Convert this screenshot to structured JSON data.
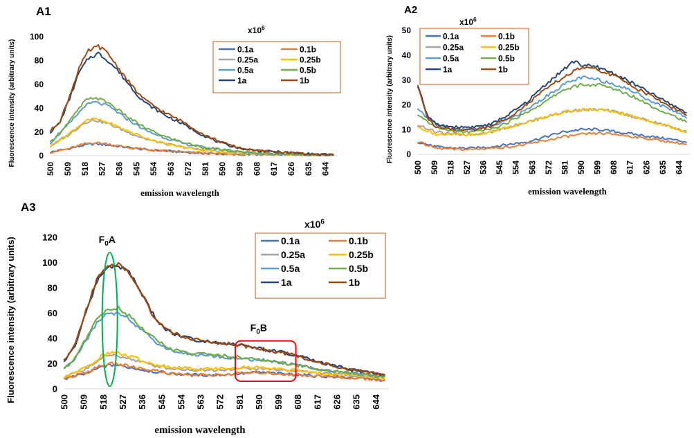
{
  "colors": {
    "0.1a": "#4472c4",
    "0.1b": "#ed7d31",
    "0.25a": "#a5a5a5",
    "0.25b": "#ffc000",
    "0.5a": "#5b9bd5",
    "0.5b": "#70ad47",
    "1a": "#264478",
    "1b": "#9e480e",
    "legend_border": "#c55a11",
    "ellipse": "#00b050",
    "rect": "#ff0000"
  },
  "chart_data": [
    {
      "id": "A1",
      "type": "line",
      "panel_label": "A1",
      "xlabel": "emission wavelength",
      "ylabel": "Fluorescence intensity (arbitrary units)",
      "ylim": [
        0,
        100
      ],
      "yticks": [
        "0",
        "20",
        "40",
        "60",
        "80",
        "100"
      ],
      "xlim": [
        500,
        650
      ],
      "xticks": [
        "500",
        "509",
        "518",
        "527",
        "536",
        "545",
        "554",
        "563",
        "572",
        "581",
        "590",
        "599",
        "608",
        "617",
        "626",
        "635",
        "644"
      ],
      "legend_title": "x10",
      "legend_title_exp": "6",
      "legend": [
        "0.1a",
        "0.1b",
        "0.25a",
        "0.25b",
        "0.5a",
        "0.5b",
        "1a",
        "1b"
      ],
      "series": [
        {
          "name": "0.1a",
          "x": [
            500,
            510,
            518,
            523,
            530,
            540,
            550,
            560,
            570,
            580,
            590,
            600,
            610,
            620,
            630,
            640,
            648
          ],
          "y": [
            3,
            6,
            9,
            10,
            9,
            7,
            5,
            4,
            3,
            2,
            1.5,
            1,
            1,
            1,
            1,
            0.5,
            0.5
          ]
        },
        {
          "name": "0.1b",
          "x": [
            500,
            510,
            518,
            523,
            530,
            540,
            550,
            560,
            570,
            580,
            590,
            600,
            610,
            620,
            630,
            640,
            648
          ],
          "y": [
            3,
            6,
            10,
            11,
            10,
            7,
            5,
            4,
            3,
            2,
            1.5,
            1,
            1,
            1,
            1,
            0.5,
            0.5
          ]
        },
        {
          "name": "0.25a",
          "x": [
            500,
            510,
            518,
            523,
            530,
            540,
            550,
            560,
            570,
            580,
            590,
            600,
            610,
            620,
            630,
            640,
            648
          ],
          "y": [
            8,
            18,
            28,
            30,
            27,
            20,
            14,
            10,
            7,
            5,
            3,
            2,
            1.5,
            1,
            1,
            0.5,
            0.5
          ]
        },
        {
          "name": "0.25b",
          "x": [
            500,
            510,
            518,
            523,
            530,
            540,
            550,
            560,
            570,
            580,
            590,
            600,
            610,
            620,
            630,
            640,
            648
          ],
          "y": [
            8,
            19,
            29,
            31,
            28,
            21,
            15,
            10,
            7,
            5,
            3,
            2,
            1.5,
            1,
            1,
            0.5,
            0.5
          ]
        },
        {
          "name": "0.5a",
          "x": [
            500,
            510,
            518,
            523,
            530,
            540,
            550,
            560,
            570,
            580,
            590,
            600,
            610,
            620,
            630,
            640,
            648
          ],
          "y": [
            11,
            27,
            42,
            45,
            42,
            31,
            21,
            15,
            10,
            7,
            5,
            3,
            2,
            1.5,
            1,
            1,
            0.5
          ]
        },
        {
          "name": "0.5b",
          "x": [
            500,
            510,
            518,
            523,
            530,
            540,
            550,
            560,
            570,
            580,
            590,
            600,
            610,
            620,
            630,
            640,
            648
          ],
          "y": [
            11,
            29,
            46,
            49,
            45,
            33,
            23,
            16,
            11,
            7,
            5,
            3,
            2,
            1.5,
            1,
            1,
            0.5
          ]
        },
        {
          "name": "1a",
          "x": [
            500,
            505,
            510,
            515,
            520,
            525,
            530,
            535,
            540,
            545,
            550,
            560,
            570,
            580,
            590,
            600,
            610,
            620,
            630,
            640,
            648
          ],
          "y": [
            20,
            28,
            48,
            70,
            82,
            86,
            80,
            72,
            62,
            52,
            44,
            34,
            26,
            17,
            10,
            6,
            4,
            3,
            2,
            1,
            1
          ]
        },
        {
          "name": "1b",
          "x": [
            500,
            505,
            510,
            515,
            520,
            525,
            530,
            535,
            540,
            545,
            550,
            560,
            570,
            580,
            590,
            600,
            610,
            620,
            630,
            640,
            648
          ],
          "y": [
            21,
            29,
            50,
            74,
            88,
            92,
            86,
            75,
            64,
            54,
            46,
            36,
            28,
            18,
            11,
            6,
            4,
            3,
            2,
            1,
            1
          ]
        }
      ]
    },
    {
      "id": "A2",
      "type": "line",
      "panel_label": "A2",
      "xlabel": "emission wavelength",
      "ylabel": "Fluorescence intensity (arbitrary units)",
      "ylim": [
        0,
        50
      ],
      "yticks": [
        "0",
        "10",
        "20",
        "30",
        "40",
        "50"
      ],
      "xlim": [
        500,
        650
      ],
      "xticks": [
        "500",
        "509",
        "518",
        "527",
        "536",
        "545",
        "554",
        "563",
        "572",
        "581",
        "590",
        "599",
        "608",
        "617",
        "626",
        "635",
        "644"
      ],
      "legend_title": "x10",
      "legend_title_exp": "6",
      "legend": [
        "0.1a",
        "0.1b",
        "0.25a",
        "0.25b",
        "0.5a",
        "0.5b",
        "1a",
        "1b"
      ],
      "series": [
        {
          "name": "0.1a",
          "x": [
            500,
            510,
            520,
            530,
            540,
            550,
            560,
            570,
            580,
            590,
            600,
            610,
            620,
            630,
            640,
            648
          ],
          "y": [
            5,
            3,
            2.5,
            2.5,
            3,
            4,
            5,
            7,
            9,
            10,
            10,
            9,
            8,
            7,
            6,
            5
          ]
        },
        {
          "name": "0.1b",
          "x": [
            500,
            510,
            520,
            530,
            540,
            550,
            560,
            570,
            580,
            590,
            600,
            610,
            620,
            630,
            640,
            648
          ],
          "y": [
            5,
            2.5,
            2,
            2,
            2.5,
            3,
            4,
            5.5,
            7,
            8,
            8.5,
            8,
            7,
            6,
            5,
            4
          ]
        },
        {
          "name": "0.25a",
          "x": [
            500,
            510,
            520,
            530,
            540,
            550,
            560,
            570,
            580,
            590,
            600,
            610,
            620,
            630,
            640,
            648
          ],
          "y": [
            12,
            9,
            8,
            8,
            9,
            11,
            13,
            15,
            17,
            18,
            18,
            17,
            15,
            13,
            11,
            9
          ]
        },
        {
          "name": "0.25b",
          "x": [
            500,
            510,
            520,
            530,
            540,
            550,
            560,
            570,
            580,
            590,
            600,
            610,
            620,
            630,
            640,
            648
          ],
          "y": [
            11,
            8,
            8,
            8,
            9,
            11,
            13,
            15,
            17,
            18,
            18,
            17,
            15,
            13,
            11,
            9
          ]
        },
        {
          "name": "0.5a",
          "x": [
            500,
            510,
            520,
            530,
            540,
            550,
            560,
            570,
            580,
            590,
            600,
            610,
            620,
            630,
            640,
            648
          ],
          "y": [
            18,
            12,
            10,
            10,
            11,
            14,
            18,
            23,
            28,
            31,
            30,
            28,
            25,
            21,
            18,
            15
          ]
        },
        {
          "name": "0.5b",
          "x": [
            500,
            510,
            520,
            530,
            540,
            550,
            560,
            570,
            580,
            590,
            600,
            610,
            620,
            630,
            640,
            648
          ],
          "y": [
            16,
            11,
            9,
            9,
            10,
            13,
            17,
            21,
            26,
            28,
            28,
            26,
            23,
            19,
            16,
            13
          ]
        },
        {
          "name": "1a",
          "x": [
            500,
            505,
            510,
            520,
            530,
            540,
            550,
            560,
            570,
            580,
            587,
            590,
            600,
            610,
            620,
            630,
            640,
            648
          ],
          "y": [
            28,
            16,
            12,
            11,
            11,
            12,
            16,
            21,
            28,
            34,
            38,
            36,
            35,
            32,
            28,
            24,
            20,
            17
          ]
        },
        {
          "name": "1b",
          "x": [
            500,
            505,
            510,
            520,
            530,
            540,
            550,
            560,
            570,
            580,
            590,
            600,
            610,
            620,
            630,
            640,
            648
          ],
          "y": [
            27,
            15,
            11,
            10,
            10,
            11,
            15,
            20,
            26,
            31,
            35,
            34,
            31,
            27,
            23,
            19,
            16
          ]
        }
      ]
    },
    {
      "id": "A3",
      "type": "line",
      "panel_label": "A3",
      "xlabel": "emission wavelength",
      "ylabel": "Fluorescence intensity (arbitrary units)",
      "ylim": [
        0,
        120
      ],
      "yticks": [
        "0",
        "20",
        "40",
        "60",
        "80",
        "100",
        "120"
      ],
      "xlim": [
        500,
        650
      ],
      "xticks": [
        "500",
        "509",
        "518",
        "527",
        "536",
        "545",
        "554",
        "563",
        "572",
        "581",
        "590",
        "599",
        "608",
        "617",
        "626",
        "635",
        "644"
      ],
      "legend_title": "x10",
      "legend_title_exp": "6",
      "legend": [
        "0.1a",
        "0.1b",
        "0.25a",
        "0.25b",
        "0.5a",
        "0.5b",
        "1a",
        "1b"
      ],
      "annotations": [
        {
          "text": "F",
          "sub": "0",
          "rest": "A"
        },
        {
          "text": "F",
          "sub": "0",
          "rest": "B"
        }
      ],
      "series": [
        {
          "name": "0.1a",
          "x": [
            500,
            510,
            518,
            523,
            530,
            540,
            550,
            560,
            570,
            580,
            590,
            600,
            610,
            620,
            630,
            640,
            648
          ],
          "y": [
            8,
            12,
            18,
            19,
            17,
            14,
            12,
            11,
            11,
            12,
            13,
            12,
            11,
            10,
            9,
            8,
            7
          ]
        },
        {
          "name": "0.1b",
          "x": [
            500,
            510,
            518,
            523,
            530,
            540,
            550,
            560,
            570,
            580,
            590,
            600,
            610,
            620,
            630,
            640,
            648
          ],
          "y": [
            8,
            13,
            19,
            20,
            18,
            15,
            12,
            11,
            11,
            12,
            13,
            12,
            11,
            10,
            9,
            8,
            7
          ]
        },
        {
          "name": "0.25a",
          "x": [
            500,
            510,
            518,
            523,
            530,
            540,
            550,
            560,
            570,
            580,
            590,
            600,
            610,
            620,
            630,
            640,
            648
          ],
          "y": [
            9,
            16,
            25,
            27,
            24,
            19,
            16,
            15,
            15,
            16,
            16,
            15,
            14,
            12,
            11,
            10,
            9
          ]
        },
        {
          "name": "0.25b",
          "x": [
            500,
            510,
            518,
            523,
            530,
            540,
            550,
            560,
            570,
            580,
            590,
            600,
            610,
            620,
            630,
            640,
            648
          ],
          "y": [
            9,
            17,
            27,
            29,
            26,
            20,
            17,
            16,
            16,
            17,
            17,
            16,
            14,
            12,
            11,
            10,
            9
          ]
        },
        {
          "name": "0.5a",
          "x": [
            500,
            505,
            510,
            515,
            520,
            525,
            530,
            535,
            540,
            545,
            550,
            560,
            570,
            580,
            590,
            600,
            610,
            620,
            630,
            640,
            648
          ],
          "y": [
            16,
            24,
            38,
            52,
            60,
            60,
            56,
            47,
            40,
            34,
            30,
            27,
            26,
            24,
            23,
            21,
            18,
            15,
            13,
            11,
            10
          ]
        },
        {
          "name": "0.5b",
          "x": [
            500,
            505,
            510,
            515,
            520,
            525,
            530,
            535,
            540,
            545,
            550,
            560,
            570,
            580,
            590,
            600,
            610,
            620,
            630,
            640,
            648
          ],
          "y": [
            16,
            25,
            40,
            55,
            63,
            64,
            58,
            49,
            42,
            36,
            31,
            28,
            27,
            25,
            23,
            21,
            18,
            15,
            13,
            11,
            10
          ]
        },
        {
          "name": "1a",
          "x": [
            500,
            505,
            510,
            515,
            520,
            525,
            530,
            535,
            540,
            545,
            550,
            560,
            570,
            580,
            590,
            600,
            610,
            620,
            630,
            640,
            648
          ],
          "y": [
            22,
            35,
            60,
            85,
            97,
            98,
            92,
            78,
            62,
            50,
            44,
            39,
            37,
            35,
            32,
            29,
            25,
            20,
            16,
            13,
            11
          ]
        },
        {
          "name": "1b",
          "x": [
            500,
            505,
            510,
            515,
            520,
            525,
            530,
            535,
            540,
            545,
            550,
            560,
            570,
            580,
            590,
            600,
            610,
            620,
            630,
            640,
            648
          ],
          "y": [
            22,
            36,
            62,
            87,
            98,
            99,
            92,
            77,
            61,
            50,
            44,
            39,
            37,
            35,
            32,
            29,
            25,
            20,
            16,
            13,
            11
          ]
        }
      ]
    }
  ]
}
